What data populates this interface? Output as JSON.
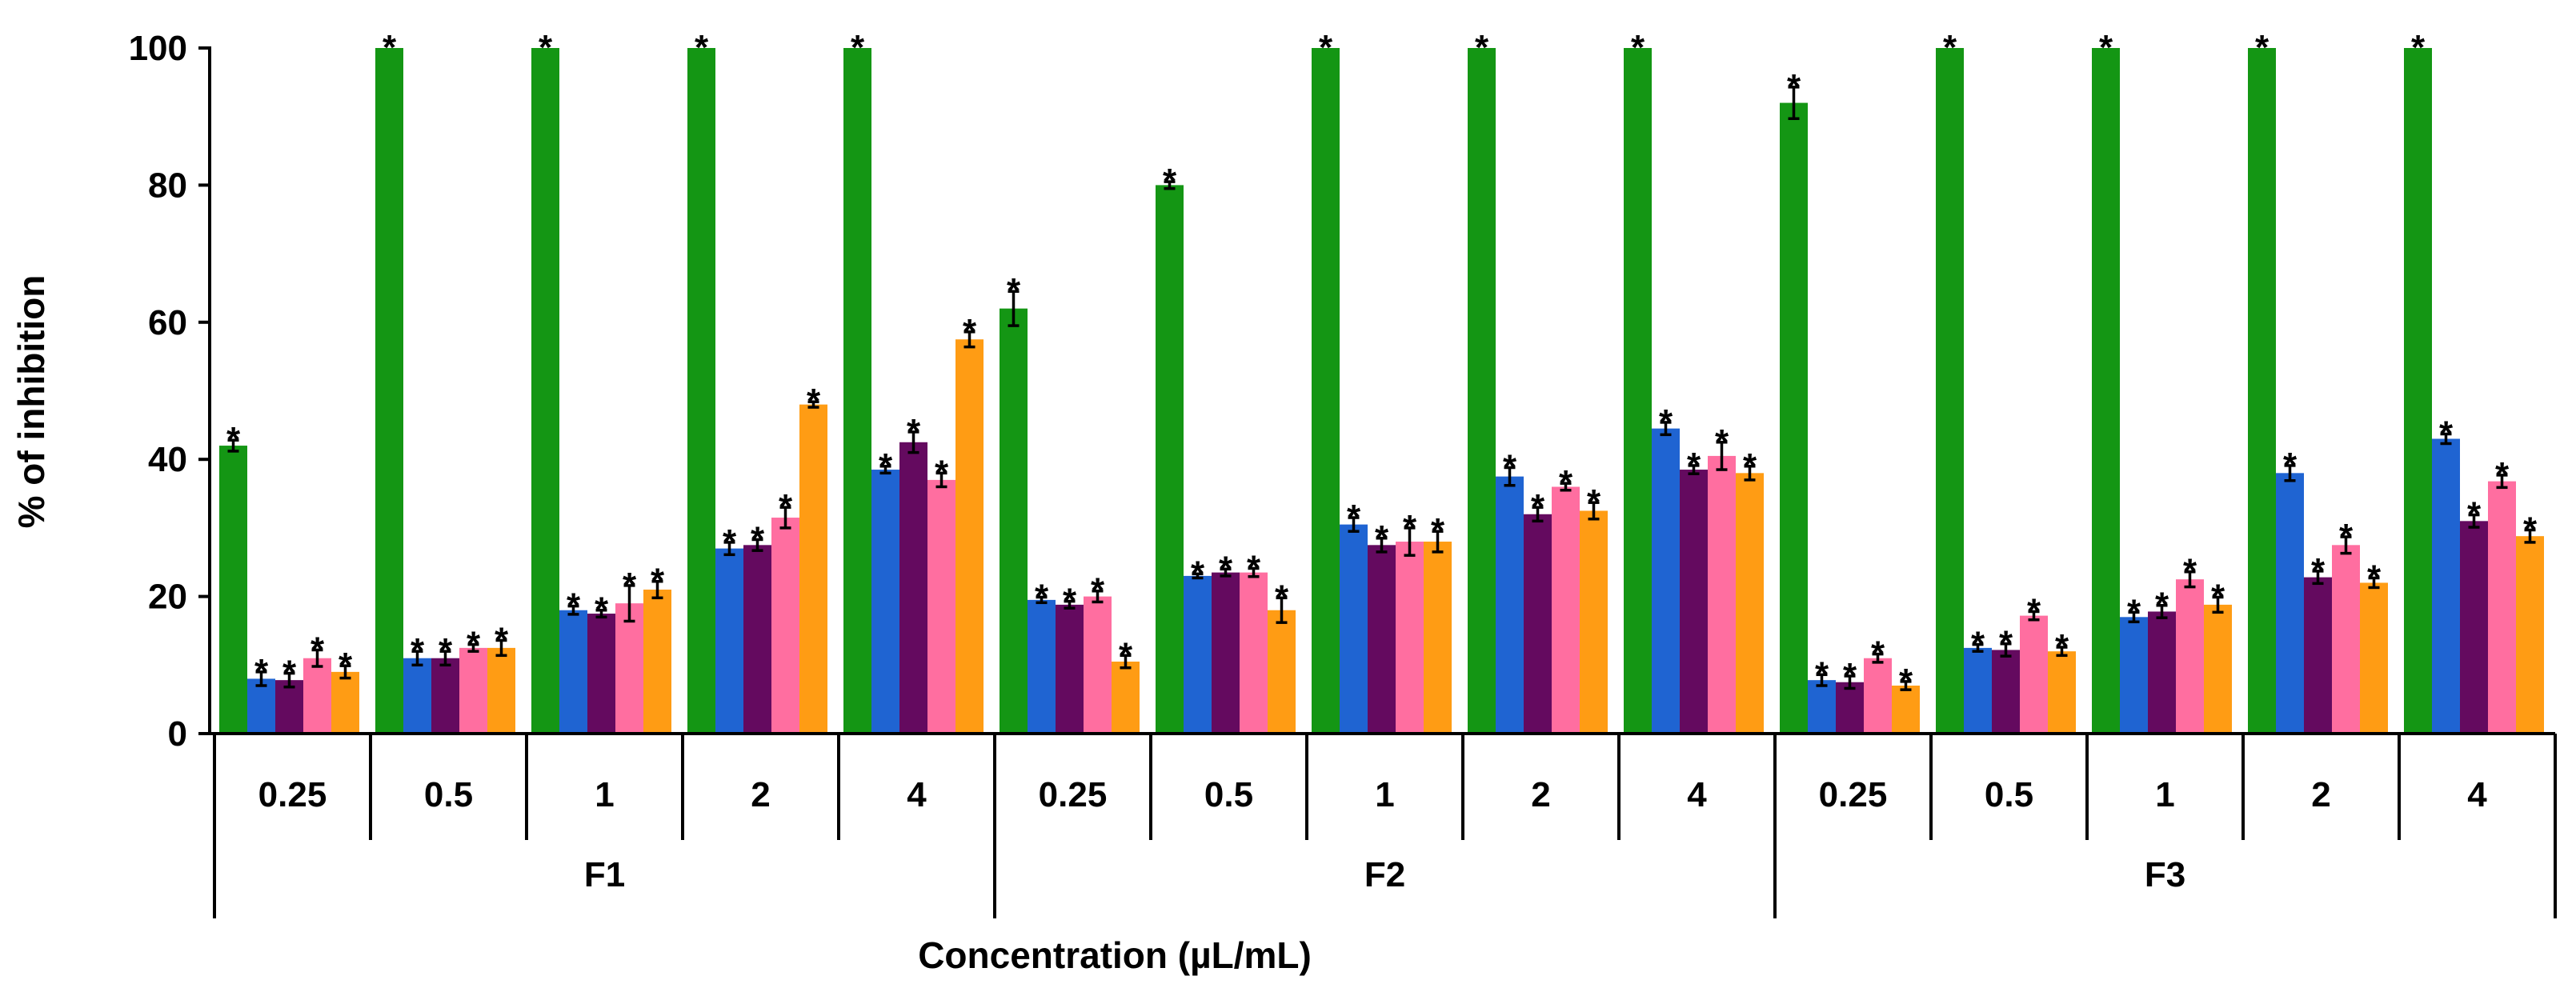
{
  "chart_data": {
    "type": "bar",
    "title": "",
    "xlabel": "Concentration (µL/mL)",
    "ylabel": "% of inhibition",
    "ylim": [
      0,
      100
    ],
    "yticks": [
      0,
      20,
      40,
      60,
      80,
      100
    ],
    "ytick_labels": [
      "0",
      "20",
      "40",
      "60",
      "80",
      "100"
    ],
    "grid": false,
    "legend": "none",
    "significance_marker": "*",
    "colors": [
      "#149614",
      "#1f64d2",
      "#640a5f",
      "#ff6ea0",
      "#ff9c14"
    ],
    "groups": [
      {
        "name": "F1",
        "categories": [
          "0.25",
          "0.5",
          "1",
          "2",
          "4"
        ],
        "series": [
          {
            "values": [
              42,
              100,
              100,
              100,
              100
            ],
            "errors": [
              0.8,
              0,
              0,
              0,
              0
            ]
          },
          {
            "values": [
              8,
              11,
              18,
              27,
              38.5
            ],
            "errors": [
              1.0,
              1.0,
              0.6,
              0.9,
              0.5
            ]
          },
          {
            "values": [
              7.8,
              11,
              17.5,
              27.5,
              42.5
            ],
            "errors": [
              1.0,
              1.0,
              0.5,
              0.8,
              1.5
            ]
          },
          {
            "values": [
              11,
              12.5,
              19,
              31.5,
              37
            ],
            "errors": [
              1.2,
              0.5,
              2.6,
              1.5,
              1.0
            ]
          },
          {
            "values": [
              9,
              12.5,
              21,
              48,
              57.5
            ],
            "errors": [
              0.9,
              1.1,
              1.2,
              0.4,
              1.1
            ]
          }
        ]
      },
      {
        "name": "F2",
        "categories": [
          "0.25",
          "0.5",
          "1",
          "2",
          "4"
        ],
        "series": [
          {
            "values": [
              62,
              80,
              100,
              100,
              100
            ],
            "errors": [
              2.5,
              0.5,
              0,
              0,
              0
            ]
          },
          {
            "values": [
              19.5,
              23,
              30.5,
              37.5,
              44.5
            ],
            "errors": [
              0.4,
              0.3,
              1.0,
              1.3,
              0.9
            ]
          },
          {
            "values": [
              18.8,
              23.5,
              27.5,
              32,
              38.5
            ],
            "errors": [
              0.5,
              0.5,
              1.0,
              1.0,
              0.6
            ]
          },
          {
            "values": [
              20,
              23.5,
              28,
              36,
              40.5
            ],
            "errors": [
              0.8,
              0.6,
              2.0,
              0.5,
              2.0
            ]
          },
          {
            "values": [
              10.5,
              18,
              28,
              32.5,
              38
            ],
            "errors": [
              0.9,
              1.8,
              1.5,
              1.2,
              1.0
            ]
          }
        ]
      },
      {
        "name": "F3",
        "categories": [
          "0.25",
          "0.5",
          "1",
          "2",
          "4"
        ],
        "series": [
          {
            "values": [
              92,
              100,
              100,
              100,
              100
            ],
            "errors": [
              2.3,
              0,
              0,
              0,
              0
            ]
          },
          {
            "values": [
              7.8,
              12.5,
              17,
              38,
              43
            ],
            "errors": [
              0.8,
              0.5,
              0.7,
              1.1,
              0.7
            ]
          },
          {
            "values": [
              7.5,
              12.2,
              17.8,
              22.8,
              31
            ],
            "errors": [
              0.9,
              0.9,
              0.9,
              0.9,
              0.9
            ]
          },
          {
            "values": [
              11,
              17.2,
              22.5,
              27.5,
              36.8
            ],
            "errors": [
              0.6,
              0.6,
              1.1,
              1.2,
              0.9
            ]
          },
          {
            "values": [
              7,
              12,
              18.8,
              22,
              28.8
            ],
            "errors": [
              0.6,
              0.6,
              1.1,
              0.7,
              0.9
            ]
          }
        ]
      }
    ]
  }
}
